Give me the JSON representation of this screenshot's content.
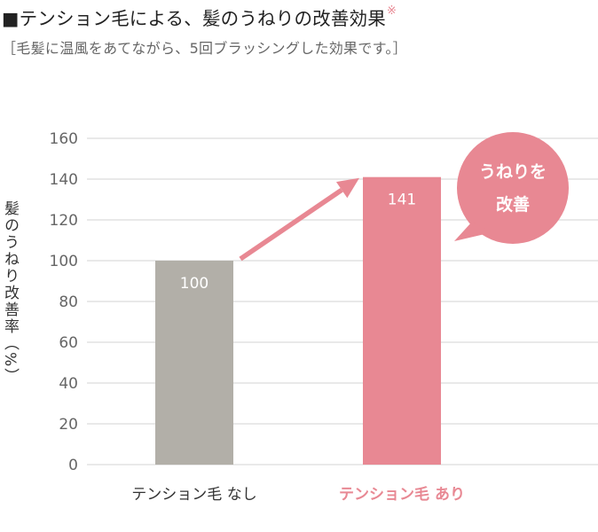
{
  "header": {
    "title": "■テンション毛による、髪のうねりの改善効果",
    "title_mark": "※",
    "subtitle": "［毛髪に温風をあてながら、5回ブラッシングした効果です。］"
  },
  "callout": {
    "line1": "うねりを",
    "line2": "改善"
  },
  "colors": {
    "accent": "#e88893",
    "bar_gray": "#b2afa8",
    "grid": "#dcdcdc",
    "mark": "#e88893"
  },
  "chart_data": {
    "type": "bar",
    "title": "テンション毛による、髪のうねりの改善効果",
    "ylabel": "髪のうねり改善率（%）",
    "categories": [
      "テンション毛 なし",
      "テンション毛 あり"
    ],
    "values": [
      100,
      141
    ],
    "data_labels": [
      "100",
      "141"
    ],
    "bar_colors": [
      "#b2afa8",
      "#e88893"
    ],
    "label_colors": [
      "#333333",
      "#e88893"
    ],
    "ylim": [
      0,
      160
    ],
    "yticks": [
      0,
      20,
      40,
      60,
      80,
      100,
      120,
      140,
      160
    ],
    "grid": true
  }
}
